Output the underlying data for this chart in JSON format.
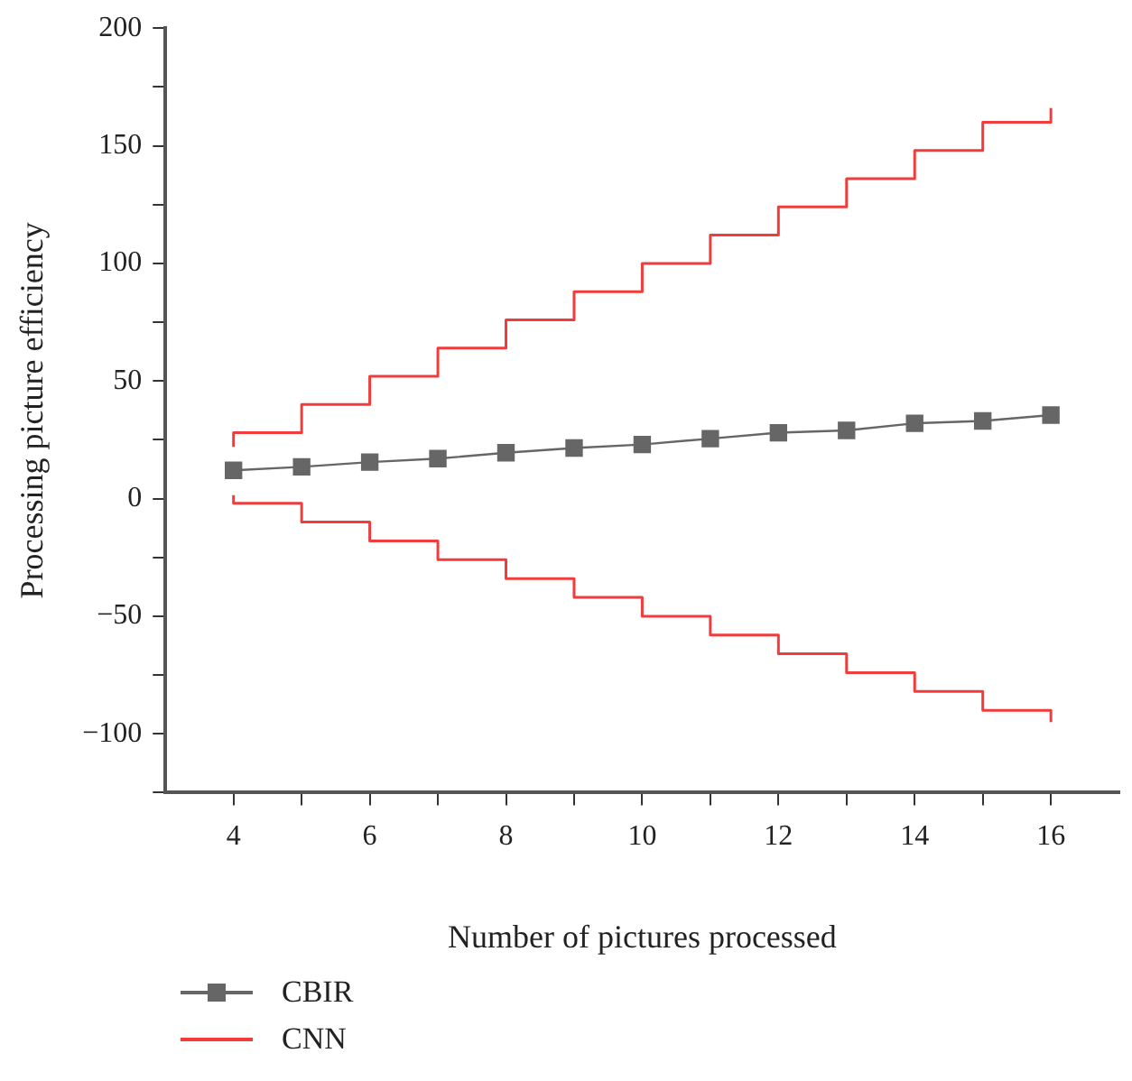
{
  "chart_data": {
    "type": "line",
    "xlabel": "Number of pictures processed",
    "ylabel": "Processing picture efficiency",
    "x": [
      4,
      5,
      6,
      7,
      8,
      9,
      10,
      11,
      12,
      13,
      14,
      15,
      16
    ],
    "series": [
      {
        "name": "CBIR",
        "type": "line",
        "marker": "square",
        "color": "#666666",
        "values": [
          12,
          13.5,
          15.5,
          17,
          19.5,
          21.5,
          23,
          25.5,
          28,
          29,
          32,
          33,
          35.5
        ]
      },
      {
        "name": "CNN",
        "type": "step",
        "color": "#f03c3c",
        "x": [
          4,
          5,
          6,
          7,
          8,
          9,
          10,
          11,
          12,
          13,
          14,
          15,
          16,
          16
        ],
        "values": [
          22,
          28,
          40,
          52,
          64,
          76,
          88,
          100,
          112,
          124,
          136,
          148,
          160,
          166
        ]
      },
      {
        "type": "step",
        "color": "#f03c3c",
        "x": [
          4,
          5,
          6,
          7,
          8,
          9,
          10,
          11,
          12,
          13,
          14,
          15,
          16,
          16
        ],
        "values": [
          1.5,
          -2,
          -10,
          -18,
          -26,
          -34,
          -42,
          -50,
          -58,
          -66,
          -74,
          -82,
          -90,
          -95
        ]
      }
    ],
    "xlim": [
      3,
      17
    ],
    "xticks": [
      4,
      {
        "value": 5,
        "label": null
      },
      6,
      {
        "value": 7,
        "label": null
      },
      8,
      {
        "value": 9,
        "label": null
      },
      10,
      {
        "value": 11,
        "label": null
      },
      12,
      {
        "value": 13,
        "label": null
      },
      14,
      {
        "value": 15,
        "label": null
      },
      16
    ],
    "ylim": [
      -125,
      200
    ],
    "yticks": [
      {
        "value": -125,
        "label": null
      },
      -100,
      {
        "value": -75,
        "label": null
      },
      -50,
      {
        "value": -25,
        "label": null
      },
      0,
      {
        "value": 25,
        "label": null
      },
      50,
      {
        "value": 75,
        "label": null
      },
      100,
      {
        "value": 125,
        "label": null
      },
      150,
      {
        "value": 175,
        "label": null
      },
      200
    ],
    "line_style": "solid",
    "grid": false,
    "legend": "bottom left"
  }
}
